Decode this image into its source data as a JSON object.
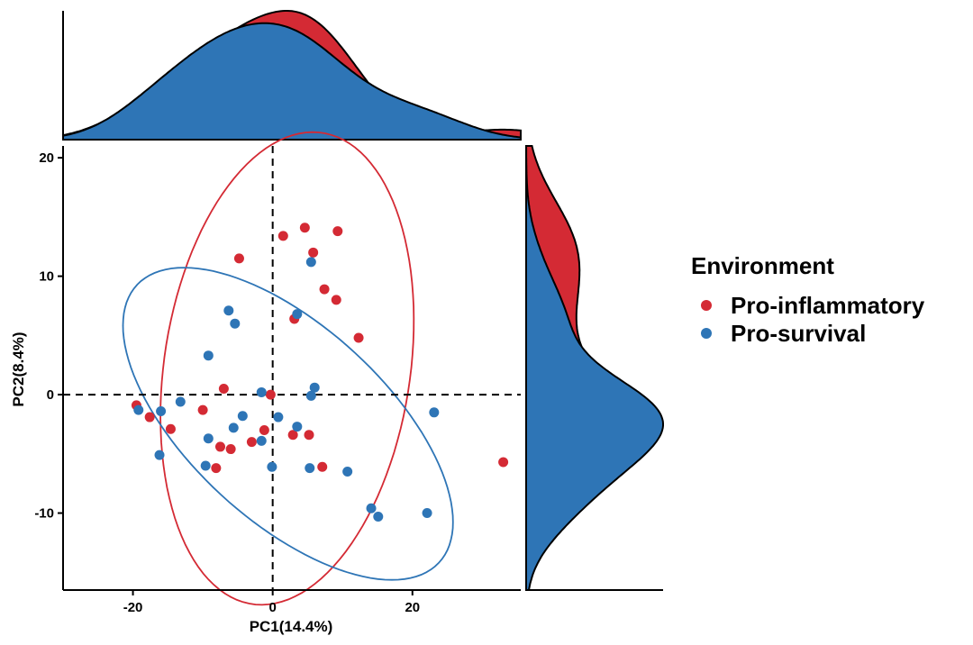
{
  "chart_data": {
    "type": "scatter",
    "title": "",
    "xlabel": "PC1(14.4%)",
    "ylabel": "PC2(8.4%)",
    "xlim": [
      -30,
      35.5
    ],
    "ylim": [
      -16.5,
      21
    ],
    "x_ticks": [
      -20,
      0,
      20
    ],
    "y_ticks": [
      -10,
      0,
      10,
      20
    ],
    "x_tick_labels": [
      "-20",
      "0",
      "20"
    ],
    "y_tick_labels": [
      "-10",
      "0",
      "10",
      "20"
    ],
    "grid": false,
    "reference_lines": {
      "x": 0,
      "y": 0,
      "style": "dashed"
    },
    "legend": {
      "title": "Environment",
      "placement": "right"
    },
    "series": [
      {
        "name": "Pro-inflammatory",
        "color": "#D42A34",
        "points": [
          [
            -19.5,
            -0.9
          ],
          [
            -17.6,
            -1.9
          ],
          [
            -14.6,
            -2.9
          ],
          [
            -10,
            -1.3
          ],
          [
            -7,
            0.5
          ],
          [
            -7.5,
            -4.4
          ],
          [
            -6,
            -4.6
          ],
          [
            -8.1,
            -6.2
          ],
          [
            -3,
            -4
          ],
          [
            -1.2,
            -3
          ],
          [
            -4.8,
            11.5
          ],
          [
            1.5,
            13.4
          ],
          [
            4.6,
            14.1
          ],
          [
            5.8,
            12
          ],
          [
            9.3,
            13.8
          ],
          [
            7.4,
            8.9
          ],
          [
            9.1,
            8
          ],
          [
            3.1,
            6.4
          ],
          [
            12.3,
            4.8
          ],
          [
            -0.3,
            0
          ],
          [
            2.9,
            -3.4
          ],
          [
            5.2,
            -3.4
          ],
          [
            7.1,
            -6.1
          ],
          [
            33,
            -5.7
          ]
        ],
        "ellipse": {
          "cx": 2.07,
          "cy": 2.21,
          "rx": 21.08,
          "ry": 16.81,
          "angle_deg": 57.7
        }
      },
      {
        "name": "Pro-survival",
        "color": "#2E75B6",
        "points": [
          [
            -19.2,
            -1.3
          ],
          [
            -16,
            -1.4
          ],
          [
            -13.2,
            -0.6
          ],
          [
            -16.2,
            -5.1
          ],
          [
            -9.2,
            3.3
          ],
          [
            -6.3,
            7.1
          ],
          [
            -5.4,
            6
          ],
          [
            -9.2,
            -3.7
          ],
          [
            -5.6,
            -2.8
          ],
          [
            -4.3,
            -1.8
          ],
          [
            -9.6,
            -6
          ],
          [
            -1.6,
            0.2
          ],
          [
            -1.6,
            -3.9
          ],
          [
            -0.1,
            -6.1
          ],
          [
            0.8,
            -1.9
          ],
          [
            3.5,
            6.8
          ],
          [
            5.5,
            11.2
          ],
          [
            3.5,
            -2.7
          ],
          [
            5.3,
            -6.2
          ],
          [
            5.5,
            -0.1
          ],
          [
            6,
            0.6
          ],
          [
            10.7,
            -6.5
          ],
          [
            14.1,
            -9.6
          ],
          [
            15.1,
            -10.3
          ],
          [
            22.1,
            -10
          ],
          [
            23.1,
            -1.5
          ]
        ],
        "ellipse": {
          "cx": 2.19,
          "cy": -2.46,
          "rx": 25.3,
          "ry": 9.56,
          "angle_deg": -22.8
        }
      }
    ],
    "marginal_density": {
      "top": "density of PC1 by group",
      "right": "density of PC2 by group"
    }
  }
}
